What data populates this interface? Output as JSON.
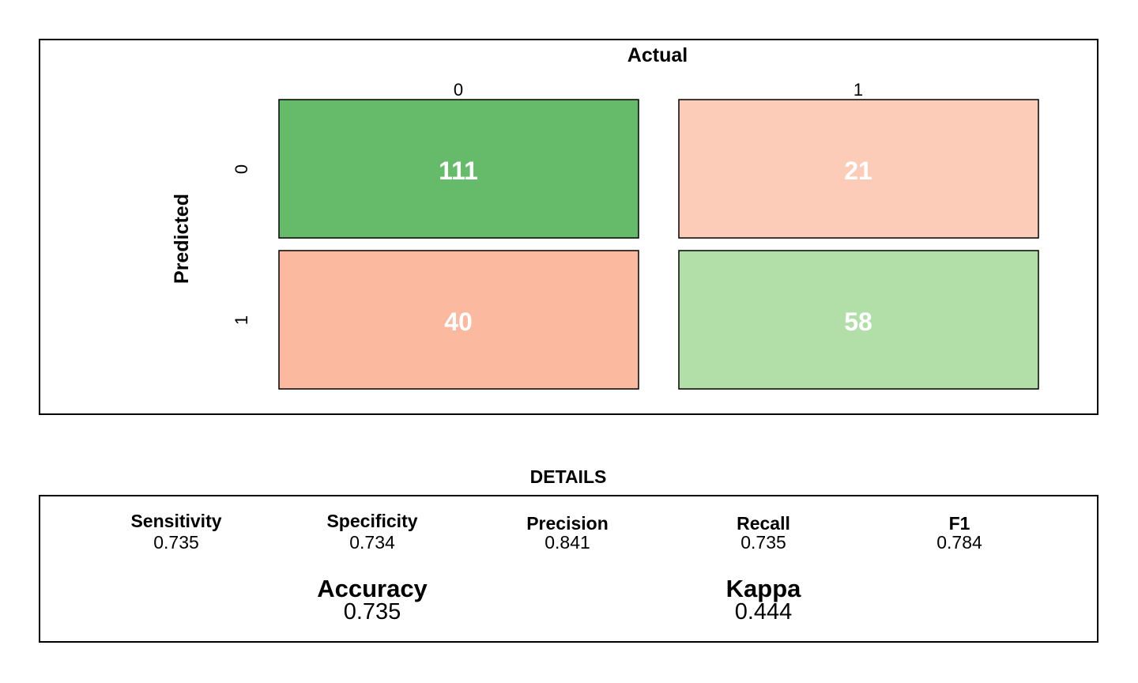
{
  "chart_data": {
    "type": "heatmap",
    "title": "",
    "xlabel": "Actual",
    "ylabel": "Predicted",
    "x_categories": [
      "0",
      "1"
    ],
    "y_categories": [
      "0",
      "1"
    ],
    "cells": [
      {
        "predicted": "0",
        "actual": "0",
        "value": "111",
        "color": "#66bb6a"
      },
      {
        "predicted": "0",
        "actual": "1",
        "value": "21",
        "color": "#fdccb8"
      },
      {
        "predicted": "1",
        "actual": "0",
        "value": "40",
        "color": "#fbb99f"
      },
      {
        "predicted": "1",
        "actual": "1",
        "value": "58",
        "color": "#b2dfa8"
      }
    ]
  },
  "details": {
    "heading": "DETAILS",
    "metrics": [
      {
        "label": "Sensitivity",
        "value": "0.735"
      },
      {
        "label": "Specificity",
        "value": "0.734"
      },
      {
        "label": "Precision",
        "value": "0.841"
      },
      {
        "label": "Recall",
        "value": "0.735"
      },
      {
        "label": "F1",
        "value": "0.784"
      }
    ],
    "summary": [
      {
        "label": "Accuracy",
        "value": "0.735"
      },
      {
        "label": "Kappa",
        "value": "0.444"
      }
    ]
  }
}
